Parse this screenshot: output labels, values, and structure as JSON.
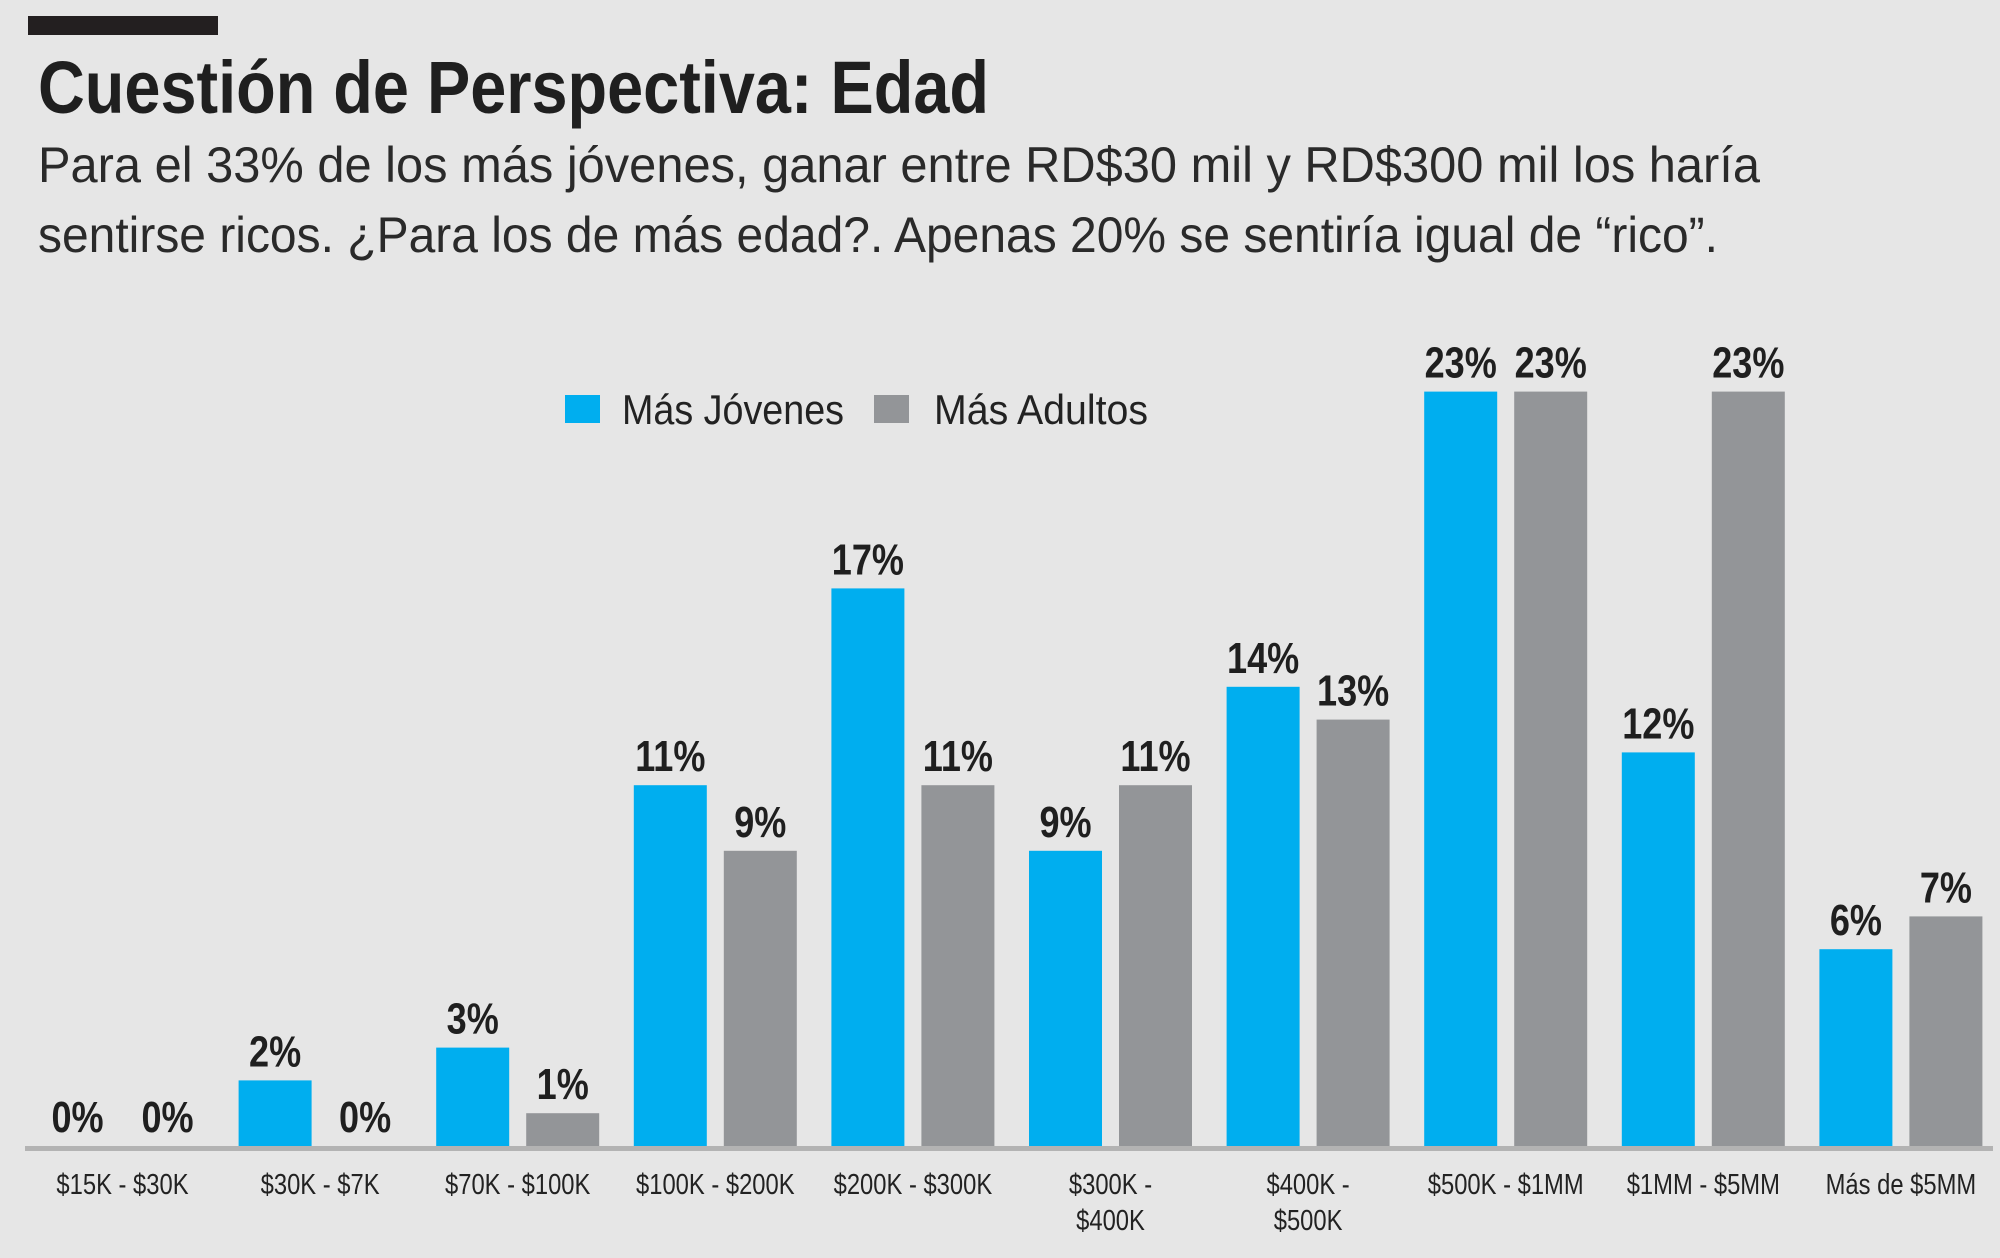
{
  "header": {
    "title": "Cuestión de Perspectiva: Edad",
    "subtitle_line1": "Para el 33% de los más jóvenes, ganar entre RD$30 mil y RD$300 mil los haría",
    "subtitle_line2": "sentirse ricos. ¿Para los de más edad?. Apenas 20% se sentiría igual de “rico”."
  },
  "colors": {
    "background": "#e6e6e6",
    "young": "#00aeef",
    "adult": "#939598",
    "axis": "#b3b3b3"
  },
  "chart_data": {
    "type": "bar",
    "title": "Cuestión de Perspectiva: Edad",
    "xlabel": "",
    "ylabel": "",
    "ylim": [
      0,
      25
    ],
    "grid": false,
    "legend_position": "top-center",
    "categories": [
      "$15K - $30K",
      "$30K - $7K",
      "$70K - $100K",
      "$100K - $200K",
      "$200K - $300K",
      "$300K - $400K",
      "$400K - $500K",
      "$500K - $1MM",
      "$1MM - $5MM",
      "Más de $5MM"
    ],
    "series": [
      {
        "name": "Más Jóvenes",
        "color": "#00aeef",
        "values": [
          0,
          2,
          3,
          11,
          17,
          9,
          14,
          23,
          12,
          6
        ]
      },
      {
        "name": "Más Adultos",
        "color": "#939598",
        "values": [
          0,
          0,
          1,
          9,
          11,
          11,
          13,
          23,
          23,
          7
        ]
      }
    ],
    "value_suffix": "%"
  }
}
